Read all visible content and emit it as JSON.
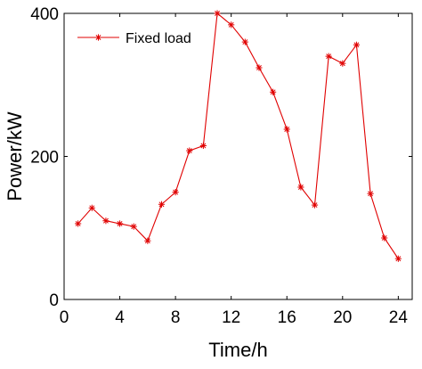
{
  "chart_data": {
    "type": "line",
    "xlabel": "Time/h",
    "ylabel": "Power/kW",
    "xlim": [
      0,
      25
    ],
    "ylim": [
      0,
      400
    ],
    "xticks": [
      0,
      4,
      8,
      12,
      16,
      20,
      24
    ],
    "yticks": [
      0,
      200,
      400
    ],
    "grid": false,
    "legend_position": "top-left",
    "series": [
      {
        "name": "Fixed load",
        "color": "#e00000",
        "marker": "asterisk",
        "x": [
          1,
          2,
          3,
          4,
          5,
          6,
          7,
          8,
          9,
          10,
          11,
          12,
          13,
          14,
          15,
          16,
          17,
          18,
          19,
          20,
          21,
          22,
          23,
          24
        ],
        "values": [
          106,
          128,
          110,
          106,
          102,
          82,
          133,
          150,
          208,
          215,
          400,
          384,
          360,
          324,
          290,
          238,
          157,
          132,
          340,
          330,
          356,
          148,
          86,
          57
        ]
      }
    ]
  }
}
